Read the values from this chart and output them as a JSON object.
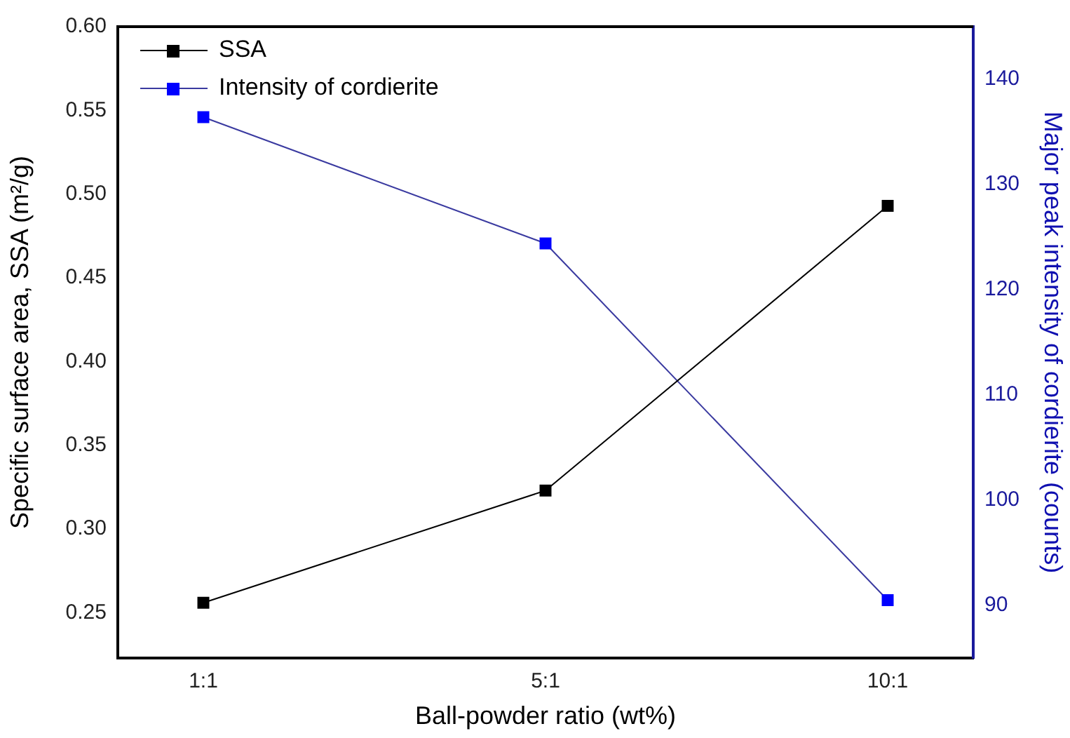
{
  "chart_data": {
    "type": "line",
    "xlabel": "Ball-powder ratio (wt%)",
    "ylabel": "Specific surface area, SSA (m²/g)",
    "y2label": "Major peak intensity of cordierite (counts)",
    "categories": [
      "1:1",
      "5:1",
      "10:1"
    ],
    "series": [
      {
        "name": "SSA",
        "color": "#000000",
        "values": [
          0.256,
          0.323,
          0.493
        ]
      },
      {
        "name": "Intensity of cordierite",
        "color": "#0000ff",
        "axis": "y2",
        "values": [
          136.4,
          124.4,
          90.5
        ]
      }
    ],
    "ylim": [
      0.223,
      0.6
    ],
    "yticks": [
      0.25,
      {
        "value": 0.3,
        "label": "0.30"
      },
      0.35,
      {
        "value": 0.4,
        "label": "0.40"
      },
      0.45,
      {
        "value": 0.5,
        "label": "0.50"
      },
      0.55,
      {
        "value": 0.6,
        "label": "0.60"
      }
    ],
    "y2lim": [
      85,
      145
    ],
    "y2ticks": [
      90,
      100,
      110,
      120,
      130,
      140
    ],
    "grid": false,
    "legend": "top left",
    "marker": "square",
    "line_style": "solid"
  }
}
